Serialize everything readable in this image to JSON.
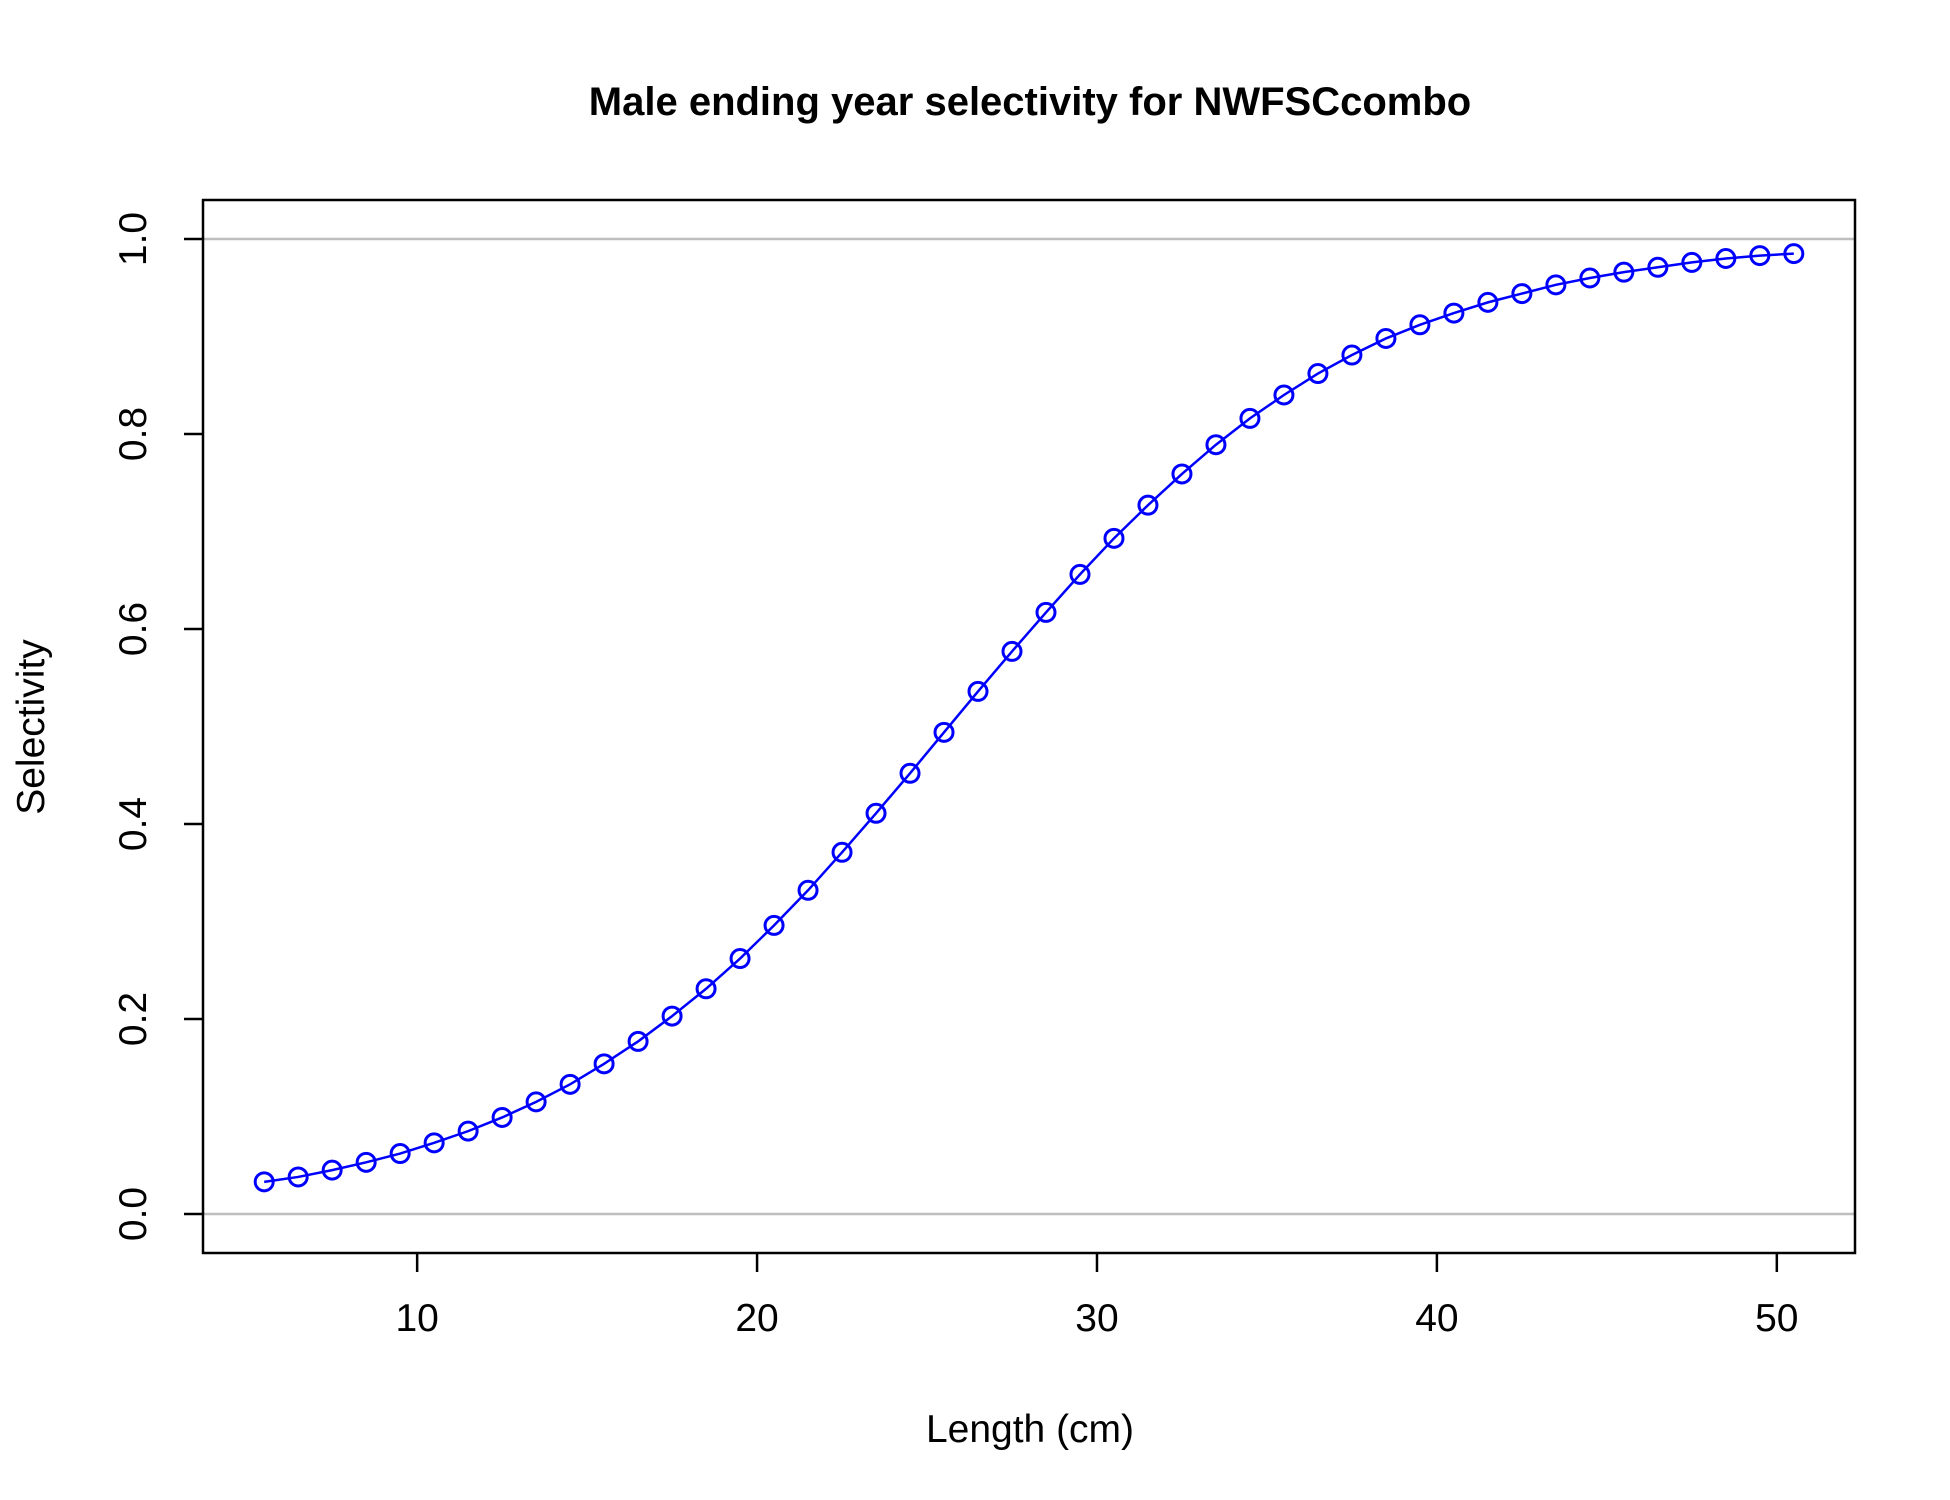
{
  "chart_data": {
    "type": "line",
    "title": "Male ending year selectivity for NWFSCcombo",
    "xlabel": "Length (cm)",
    "ylabel": "Selectivity",
    "xlim": [
      3.7,
      52.3
    ],
    "ylim": [
      -0.04,
      1.04
    ],
    "x_ticks": [
      10,
      20,
      30,
      40,
      50
    ],
    "x_tick_labels": [
      "10",
      "20",
      "30",
      "40",
      "50"
    ],
    "y_ticks": [
      0.0,
      0.2,
      0.4,
      0.6,
      0.8,
      1.0
    ],
    "y_tick_labels": [
      "0.0",
      "0.2",
      "0.4",
      "0.6",
      "0.8",
      "1.0"
    ],
    "reference_lines_y": [
      0,
      1
    ],
    "grid": false,
    "colors": {
      "series": "#0000ff",
      "reference": "#bebebe",
      "axes": "#000000"
    },
    "series": [
      {
        "marker": "open-circle",
        "x": [
          5.5,
          6.5,
          7.5,
          8.5,
          9.5,
          10.5,
          11.5,
          12.5,
          13.5,
          14.5,
          15.5,
          16.5,
          17.5,
          18.5,
          19.5,
          20.5,
          21.5,
          22.5,
          23.5,
          24.5,
          25.5,
          26.5,
          27.5,
          28.5,
          29.5,
          30.5,
          31.5,
          32.5,
          33.5,
          34.5,
          35.5,
          36.5,
          37.5,
          38.5,
          39.5,
          40.5,
          41.5,
          42.5,
          43.5,
          44.5,
          45.5,
          46.5,
          47.5,
          48.5,
          49.5,
          50.5
        ],
        "y": [
          0.033,
          0.038,
          0.045,
          0.053,
          0.062,
          0.073,
          0.085,
          0.099,
          0.115,
          0.133,
          0.154,
          0.177,
          0.203,
          0.231,
          0.262,
          0.296,
          0.332,
          0.371,
          0.411,
          0.452,
          0.494,
          0.536,
          0.577,
          0.617,
          0.656,
          0.693,
          0.727,
          0.759,
          0.789,
          0.816,
          0.84,
          0.862,
          0.881,
          0.898,
          0.912,
          0.924,
          0.935,
          0.944,
          0.953,
          0.96,
          0.966,
          0.971,
          0.976,
          0.98,
          0.983,
          0.985
        ]
      }
    ]
  }
}
